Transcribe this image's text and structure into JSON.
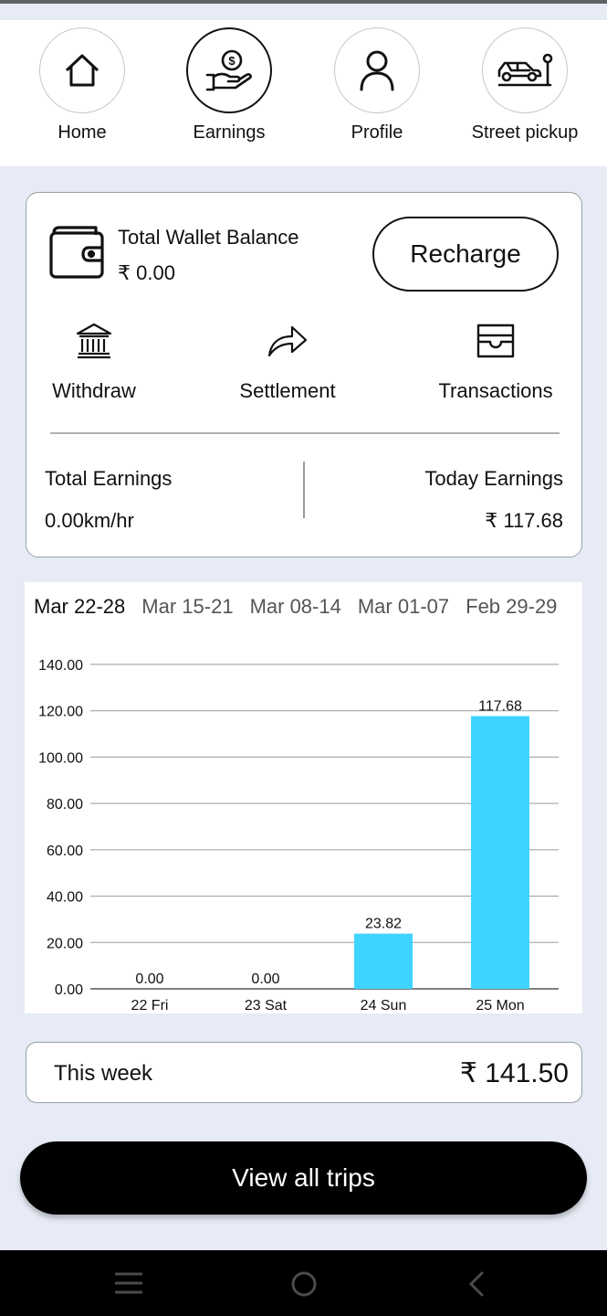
{
  "nav": {
    "items": [
      {
        "label": "Home",
        "icon": "home-icon"
      },
      {
        "label": "Earnings",
        "icon": "earnings-icon"
      },
      {
        "label": "Profile",
        "icon": "profile-icon"
      },
      {
        "label": "Street pickup",
        "icon": "street-pickup-icon"
      }
    ],
    "active": "Earnings"
  },
  "wallet": {
    "title": "Total Wallet Balance",
    "balance": "₹  0.00",
    "recharge_label": "Recharge",
    "actions": [
      {
        "label": "Withdraw",
        "icon": "bank-icon"
      },
      {
        "label": "Settlement",
        "icon": "share-arrow-icon"
      },
      {
        "label": "Transactions",
        "icon": "transactions-icon"
      }
    ],
    "total_earnings_label": "Total Earnings",
    "total_earnings_value": "0.00km/hr",
    "today_earnings_label": "Today Earnings",
    "today_earnings_value": "₹  117.68"
  },
  "weeks": [
    "Mar 22-28",
    "Mar 15-21",
    "Mar 08-14",
    "Mar 01-07",
    "Feb 29-29"
  ],
  "chart_data": {
    "type": "bar",
    "categories": [
      "22 Fri",
      "23 Sat",
      "24 Sun",
      "25 Mon"
    ],
    "values": [
      0.0,
      0.0,
      23.82,
      117.68
    ],
    "value_labels": [
      "0.00",
      "0.00",
      "23.82",
      "117.68"
    ],
    "yticks": [
      "0.00",
      "20.00",
      "40.00",
      "60.00",
      "80.00",
      "100.00",
      "120.00",
      "140.00"
    ],
    "ylim": [
      0,
      140
    ],
    "grid": true,
    "bar_color": "#3fd4ff"
  },
  "summary": {
    "label": "This week",
    "value": "₹  141.50"
  },
  "trips_button": "View all trips",
  "system_nav": [
    "menu-icon",
    "home-circle-icon",
    "back-icon"
  ]
}
